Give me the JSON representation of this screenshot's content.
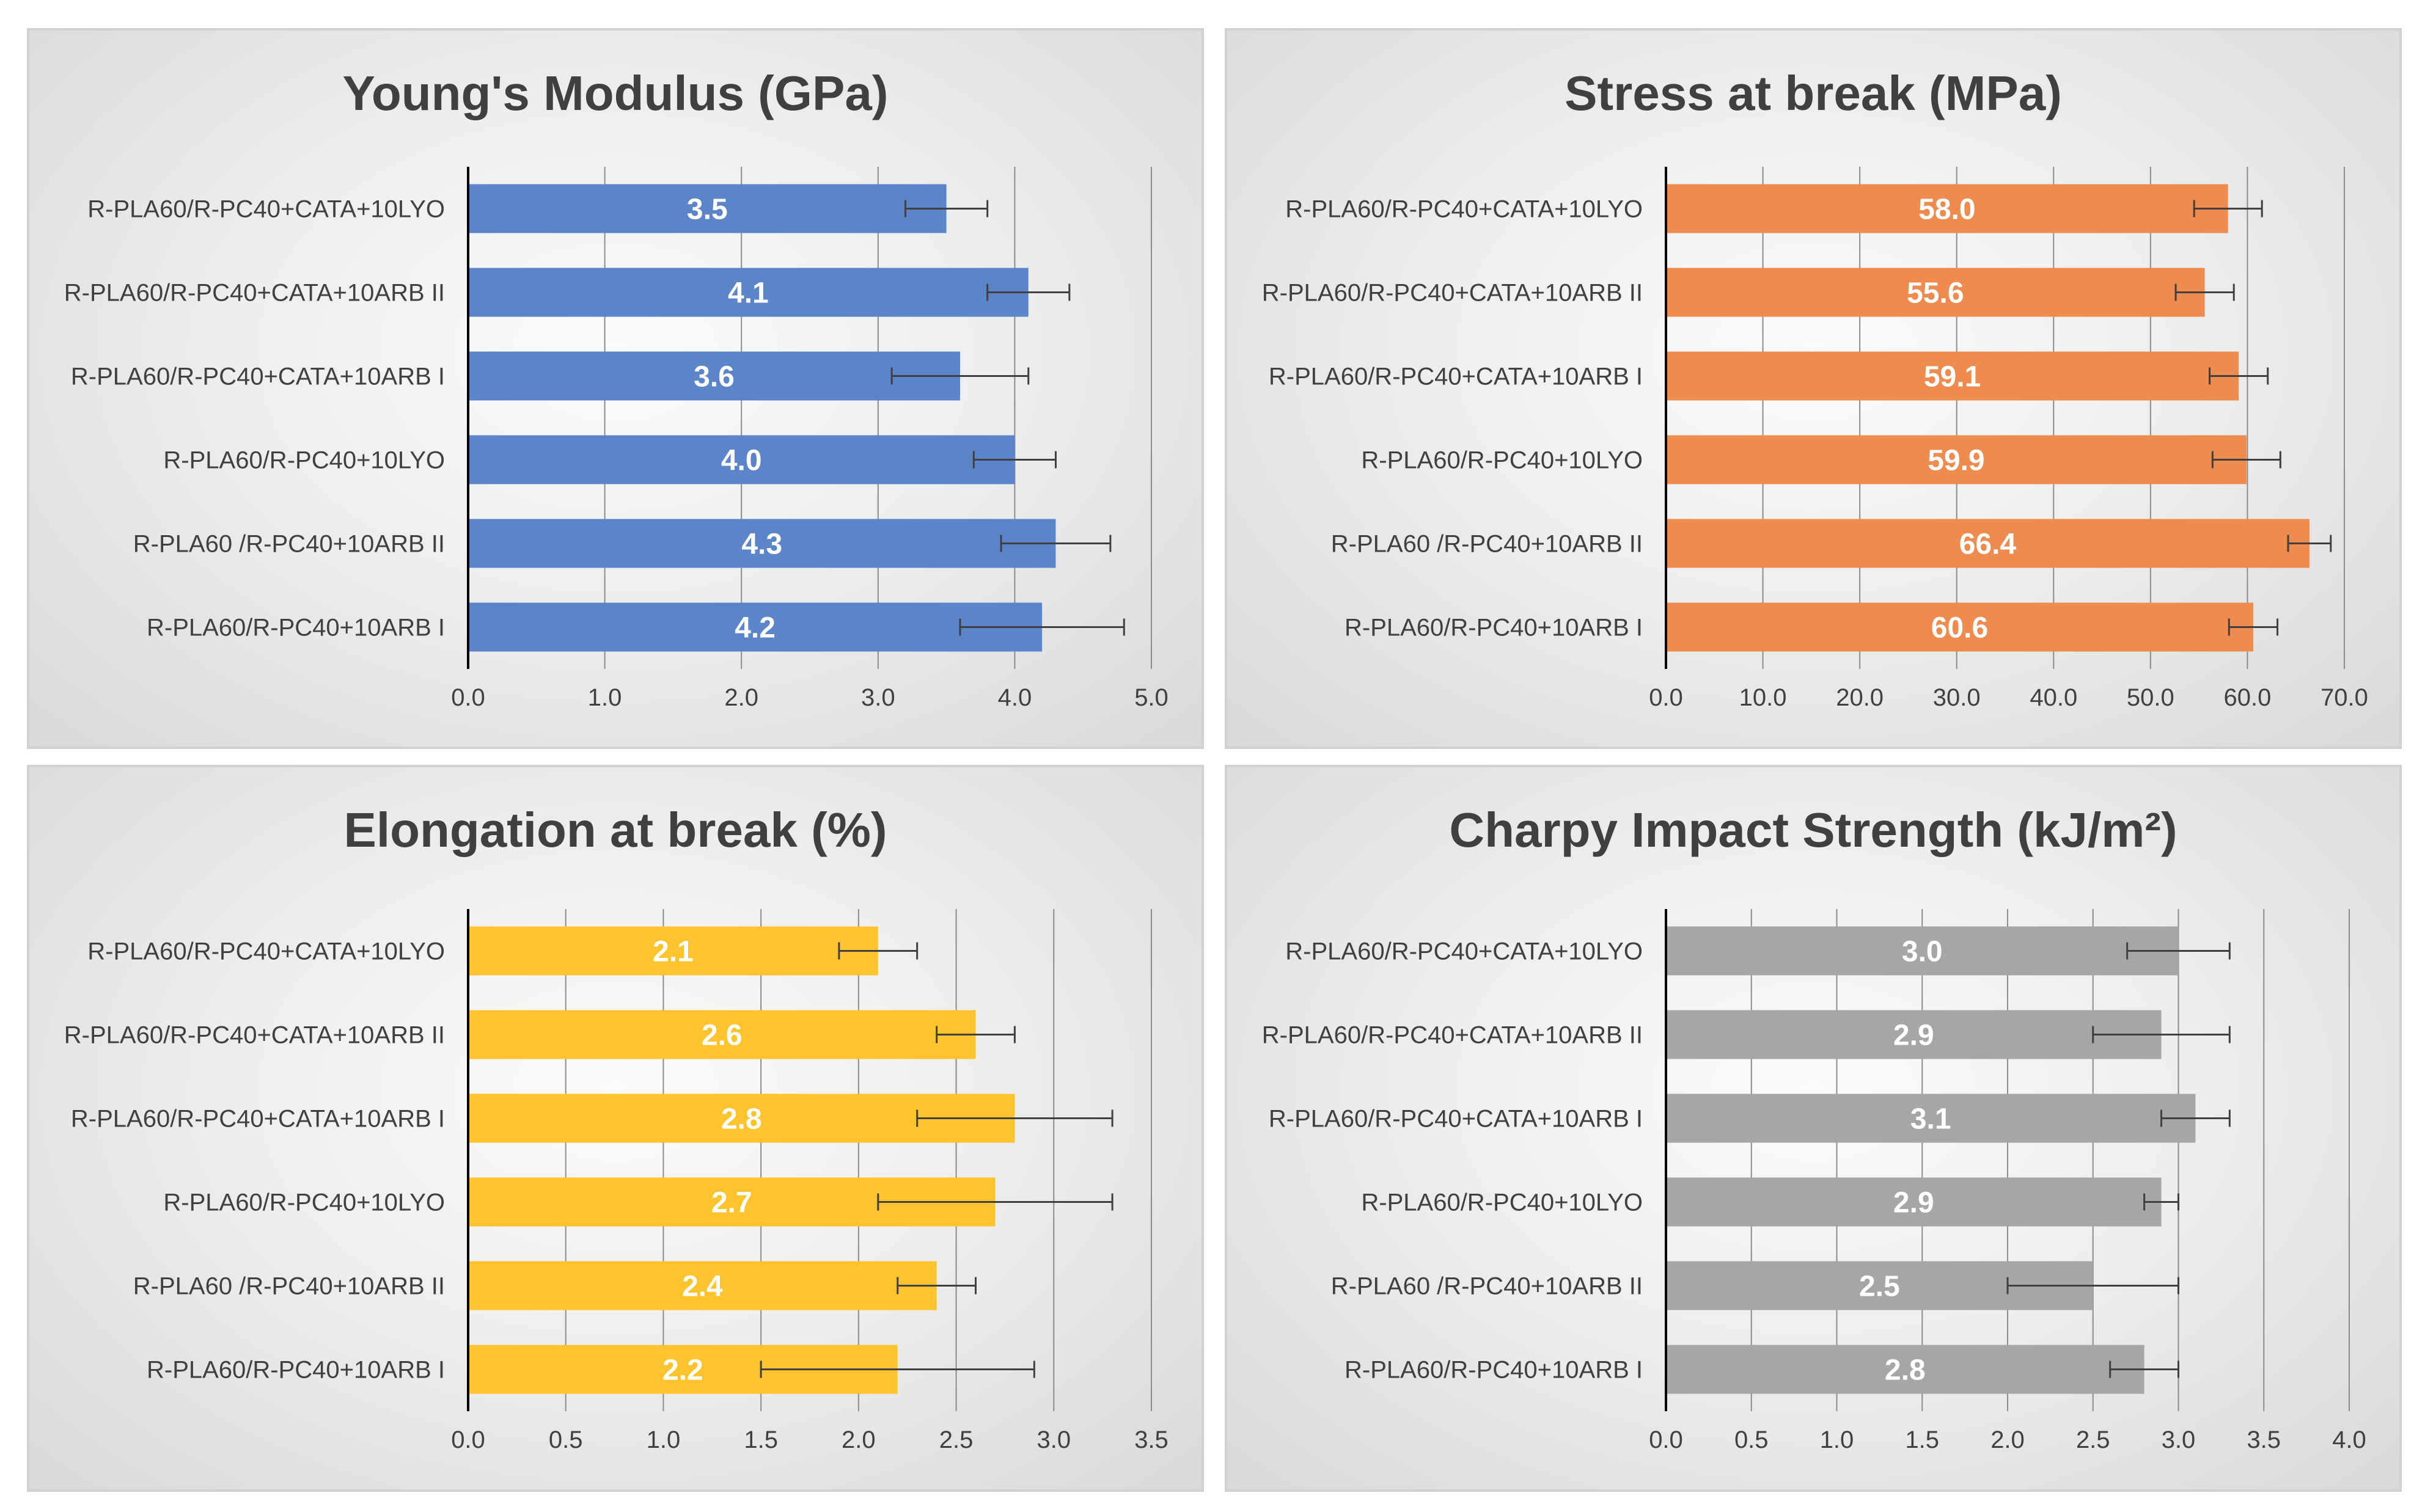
{
  "chart_data": [
    {
      "type": "bar",
      "orientation": "horizontal",
      "title": "Young's Modulus (GPa)",
      "color": "#5b84c9",
      "categories": [
        "R-PLA60/R-PC40+CATA+10LYO",
        "R-PLA60/R-PC40+CATA+10ARB II",
        "R-PLA60/R-PC40+CATA+10ARB I",
        "R-PLA60/R-PC40+10LYO",
        "R-PLA60 /R-PC40+10ARB II",
        "R-PLA60/R-PC40+10ARB I"
      ],
      "values": [
        3.5,
        4.1,
        3.6,
        4.0,
        4.3,
        4.2
      ],
      "data_labels": [
        "3.5",
        "4.1",
        "3.6",
        "4.0",
        "4.3",
        "4.2"
      ],
      "errors": [
        0.3,
        0.3,
        0.5,
        0.3,
        0.4,
        0.6
      ],
      "xlim": [
        0,
        5
      ],
      "ticks": [
        "0.0",
        "1.0",
        "2.0",
        "3.0",
        "4.0",
        "5.0"
      ],
      "grid": true
    },
    {
      "type": "bar",
      "orientation": "horizontal",
      "title": "Stress at break (MPa)",
      "color": "#ee8b4e",
      "categories": [
        "R-PLA60/R-PC40+CATA+10LYO",
        "R-PLA60/R-PC40+CATA+10ARB II",
        "R-PLA60/R-PC40+CATA+10ARB I",
        "R-PLA60/R-PC40+10LYO",
        "R-PLA60 /R-PC40+10ARB II",
        "R-PLA60/R-PC40+10ARB I"
      ],
      "values": [
        58.0,
        55.6,
        59.1,
        59.9,
        66.4,
        60.6
      ],
      "data_labels": [
        "58.0",
        "55.6",
        "59.1",
        "59.9",
        "66.4",
        "60.6"
      ],
      "errors": [
        3.5,
        3.0,
        3.0,
        3.5,
        2.2,
        2.5
      ],
      "xlim": [
        0,
        70
      ],
      "ticks": [
        "0.0",
        "10.0",
        "20.0",
        "30.0",
        "40.0",
        "50.0",
        "60.0",
        "70.0"
      ],
      "grid": true
    },
    {
      "type": "bar",
      "orientation": "horizontal",
      "title": "Elongation at break (%)",
      "color": "#fdc42d",
      "categories": [
        "R-PLA60/R-PC40+CATA+10LYO",
        "R-PLA60/R-PC40+CATA+10ARB II",
        "R-PLA60/R-PC40+CATA+10ARB I",
        "R-PLA60/R-PC40+10LYO",
        "R-PLA60 /R-PC40+10ARB II",
        "R-PLA60/R-PC40+10ARB I"
      ],
      "values": [
        2.1,
        2.6,
        2.8,
        2.7,
        2.4,
        2.2
      ],
      "data_labels": [
        "2.1",
        "2.6",
        "2.8",
        "2.7",
        "2.4",
        "2.2"
      ],
      "errors": [
        0.2,
        0.2,
        0.5,
        0.6,
        0.2,
        0.7
      ],
      "xlim": [
        0,
        3.5
      ],
      "ticks": [
        "0.0",
        "0.5",
        "1.0",
        "1.5",
        "2.0",
        "2.5",
        "3.0",
        "3.5"
      ],
      "grid": true
    },
    {
      "type": "bar",
      "orientation": "horizontal",
      "title": "Charpy Impact Strength (kJ/m²)",
      "color": "#a6a6a6",
      "categories": [
        "R-PLA60/R-PC40+CATA+10LYO",
        "R-PLA60/R-PC40+CATA+10ARB II",
        "R-PLA60/R-PC40+CATA+10ARB I",
        "R-PLA60/R-PC40+10LYO",
        "R-PLA60 /R-PC40+10ARB II",
        "R-PLA60/R-PC40+10ARB I"
      ],
      "values": [
        3.0,
        2.9,
        3.1,
        2.9,
        2.5,
        2.8
      ],
      "data_labels": [
        "3.0",
        "2.9",
        "3.1",
        "2.9",
        "2.5",
        "2.8"
      ],
      "errors": [
        0.3,
        0.4,
        0.2,
        0.1,
        0.5,
        0.2
      ],
      "xlim": [
        0,
        4
      ],
      "ticks": [
        "0.0",
        "0.5",
        "1.0",
        "1.5",
        "2.0",
        "2.5",
        "3.0",
        "3.5",
        "4.0"
      ],
      "grid": true
    }
  ]
}
